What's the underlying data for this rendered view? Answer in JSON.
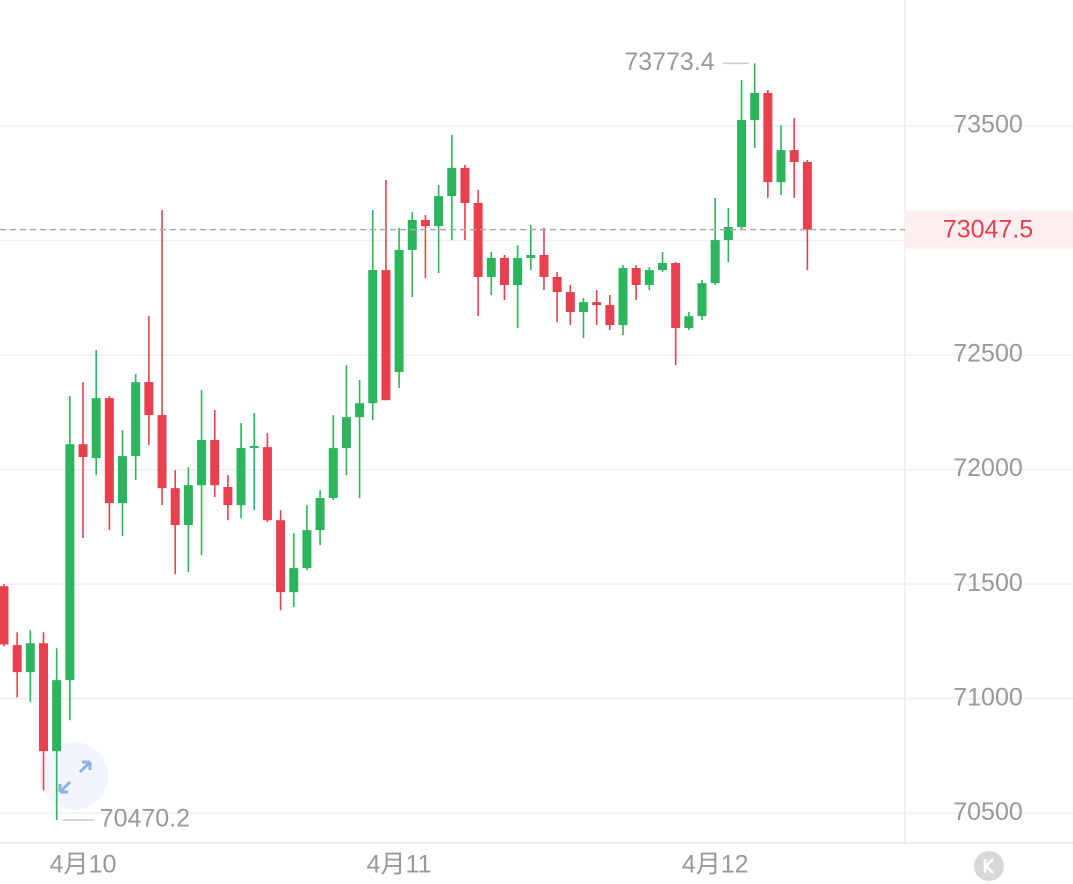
{
  "chart_data": {
    "type": "candlestick",
    "categories": [
      null,
      null,
      null,
      null,
      null,
      null,
      "4月10",
      null,
      null,
      null,
      null,
      null,
      null,
      null,
      null,
      null,
      null,
      null,
      null,
      null,
      null,
      null,
      null,
      null,
      null,
      null,
      null,
      null,
      null,
      null,
      "4月11",
      null,
      null,
      null,
      null,
      null,
      null,
      null,
      null,
      null,
      null,
      null,
      null,
      null,
      null,
      null,
      null,
      null,
      null,
      null,
      null,
      null,
      null,
      null,
      "4月12",
      null,
      null,
      null,
      null,
      null,
      null,
      null
    ],
    "open": [
      71491,
      71234,
      71116,
      71242,
      70771,
      71081,
      72111,
      72050,
      72312,
      71854,
      72059,
      72382,
      72238,
      71919,
      71758,
      71932,
      72129,
      71924,
      71845,
      72094,
      72098,
      71779,
      71465,
      71570,
      71736,
      71876,
      72094,
      72229,
      72290,
      72871,
      72426,
      72959,
      73090,
      73063,
      73194,
      73317,
      73164,
      72841,
      72924,
      72806,
      72924,
      72937,
      72841,
      72775,
      72688,
      72731,
      72718,
      72631,
      72880,
      72806,
      72871,
      72902,
      72618,
      72670,
      72814,
      73002,
      73059,
      73526,
      73644,
      73255,
      73395,
      73343
    ],
    "high": [
      71500,
      71290,
      71299,
      71290,
      71220,
      72321,
      72382,
      72522,
      72321,
      72172,
      72417,
      72670,
      73133,
      71998,
      72011,
      72347,
      72260,
      71976,
      72203,
      72247,
      72159,
      71823,
      71723,
      71845,
      71910,
      72238,
      72456,
      72391,
      73133,
      73264,
      73055,
      73124,
      73111,
      73242,
      73461,
      73330,
      73221,
      72950,
      72937,
      72980,
      73068,
      73055,
      72862,
      72806,
      72749,
      72784,
      72762,
      72893,
      72893,
      72884,
      72950,
      72906,
      72688,
      72828,
      73186,
      73142,
      73701,
      73773.4,
      73657,
      73504,
      73535,
      73352
    ],
    "low": [
      71229,
      71006,
      70985,
      70600,
      70470.2,
      70906,
      71701,
      71976,
      71736,
      71710,
      71954,
      72107,
      71845,
      71544,
      71552,
      71627,
      71880,
      71779,
      71788,
      71823,
      71771,
      71386,
      71400,
      71561,
      71670,
      71867,
      71976,
      71876,
      72216,
      72303,
      72356,
      72753,
      72836,
      72858,
      73002,
      73002,
      72670,
      72762,
      72740,
      72618,
      72871,
      72784,
      72644,
      72631,
      72574,
      72631,
      72609,
      72587,
      72740,
      72784,
      72862,
      72456,
      72609,
      72653,
      72806,
      72906,
      73046,
      73404,
      73186,
      73199,
      73186,
      72871
    ],
    "close": [
      71237,
      71116,
      71242,
      70771,
      71081,
      72111,
      72055,
      72312,
      71854,
      72059,
      72382,
      72238,
      71919,
      71758,
      71932,
      72129,
      71932,
      71845,
      72094,
      72103,
      71779,
      71465,
      71570,
      71736,
      71876,
      72094,
      72229,
      72290,
      72871,
      72303,
      72959,
      73090,
      73063,
      73194,
      73317,
      73164,
      72841,
      72924,
      72806,
      72924,
      72937,
      72841,
      72775,
      72688,
      72731,
      72718,
      72631,
      72880,
      72806,
      72871,
      72902,
      72618,
      72670,
      72814,
      73002,
      73059,
      73526,
      73644,
      73255,
      73395,
      73343,
      73047.5
    ],
    "up_color": "#2db55d",
    "down_color": "#e8404e",
    "ylim": [
      70370,
      74050
    ],
    "yticks": [
      70500,
      71000,
      71500,
      72000,
      72500,
      73000,
      73500
    ],
    "grid": true
  }
}
